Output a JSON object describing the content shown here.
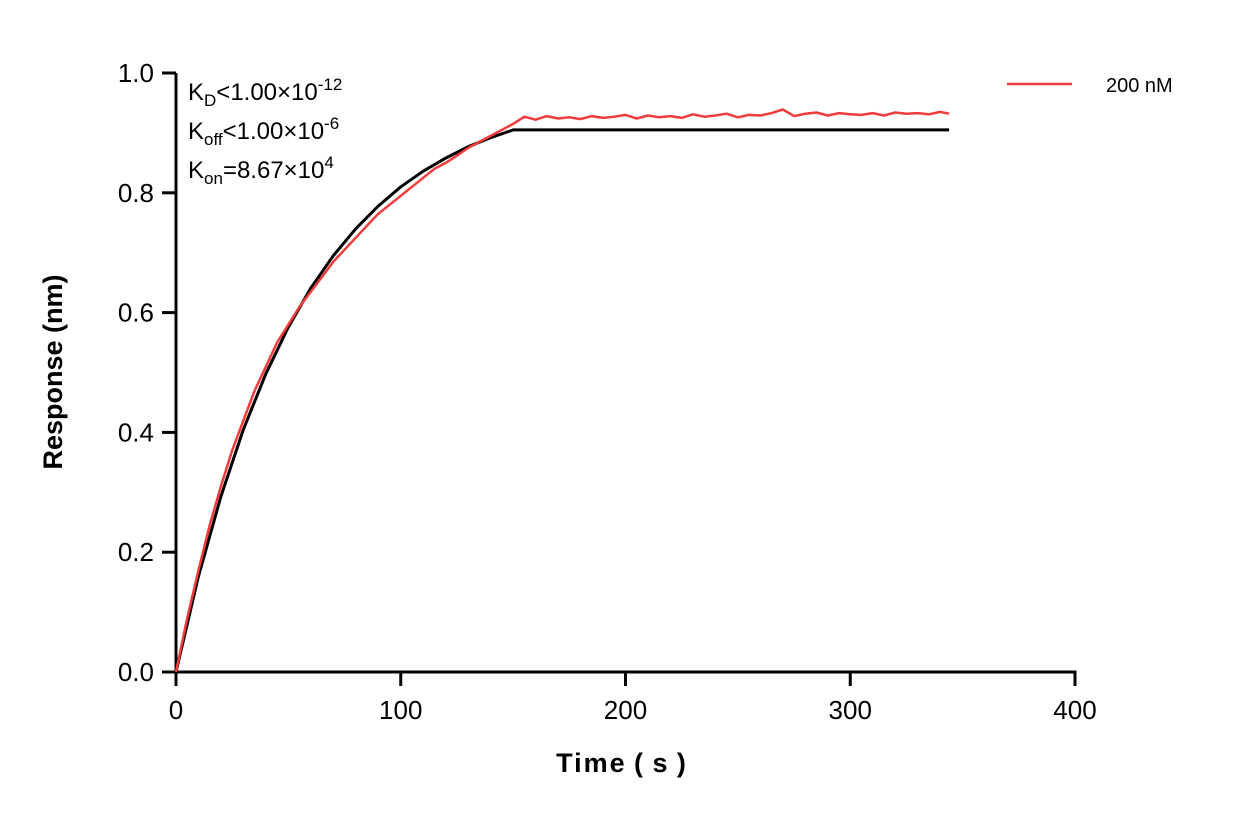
{
  "chart_data": {
    "type": "line",
    "title": "",
    "xlabel": "Time ( s )",
    "ylabel": "Response (nm)",
    "xlim": [
      0,
      400
    ],
    "ylim": [
      0,
      1.0
    ],
    "xticks": [
      "0",
      "100",
      "200",
      "300",
      "400"
    ],
    "yticks": [
      "0.0",
      "0.2",
      "0.4",
      "0.6",
      "0.8",
      "1.0"
    ],
    "grid": false,
    "legend_position": "top-right",
    "annotations": [
      {
        "main": "K",
        "sub": "D",
        "rest": "<1.00×10",
        "sup": "-12"
      },
      {
        "main": "K",
        "sub": "off",
        "rest": "<1.00×10",
        "sup": "-6"
      },
      {
        "main": "K",
        "sub": "on",
        "rest": "=8.67×10",
        "sup": "4"
      }
    ],
    "series": [
      {
        "name": "200 nM",
        "color": "#f03c3c",
        "x": [
          0,
          5,
          10,
          15,
          20,
          25,
          30,
          35,
          40,
          45,
          50,
          55,
          60,
          65,
          70,
          75,
          80,
          85,
          90,
          95,
          100,
          105,
          110,
          115,
          120,
          125,
          130,
          135,
          140,
          145,
          150,
          155,
          160,
          165,
          170,
          175,
          180,
          185,
          190,
          195,
          200,
          205,
          210,
          215,
          220,
          225,
          230,
          235,
          240,
          245,
          250,
          255,
          260,
          265,
          270,
          275,
          280,
          285,
          290,
          295,
          300,
          305,
          310,
          315,
          320,
          325,
          330,
          335,
          340,
          344
        ],
        "y": [
          0,
          0.09,
          0.17,
          0.245,
          0.31,
          0.37,
          0.42,
          0.47,
          0.51,
          0.55,
          0.58,
          0.61,
          0.635,
          0.66,
          0.685,
          0.705,
          0.725,
          0.745,
          0.765,
          0.78,
          0.795,
          0.81,
          0.825,
          0.84,
          0.85,
          0.862,
          0.875,
          0.885,
          0.895,
          0.905,
          0.915,
          0.927,
          0.922,
          0.928,
          0.924,
          0.926,
          0.923,
          0.928,
          0.925,
          0.927,
          0.93,
          0.924,
          0.929,
          0.926,
          0.928,
          0.925,
          0.931,
          0.927,
          0.929,
          0.932,
          0.926,
          0.93,
          0.929,
          0.933,
          0.939,
          0.928,
          0.932,
          0.934,
          0.929,
          0.933,
          0.931,
          0.93,
          0.933,
          0.929,
          0.934,
          0.932,
          0.933,
          0.931,
          0.935,
          0.932
        ]
      },
      {
        "name": "",
        "color": "#000000",
        "x": [
          0,
          10,
          20,
          30,
          40,
          50,
          60,
          70,
          80,
          90,
          100,
          110,
          120,
          130,
          140,
          150,
          344
        ],
        "y": [
          0,
          0.16,
          0.293,
          0.405,
          0.498,
          0.576,
          0.641,
          0.695,
          0.74,
          0.778,
          0.81,
          0.836,
          0.858,
          0.877,
          0.892,
          0.905,
          0.905
        ]
      }
    ]
  }
}
